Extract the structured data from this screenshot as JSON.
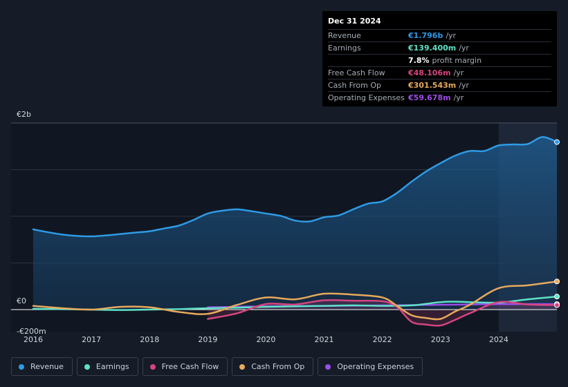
{
  "tooltip": {
    "date": "Dec 31 2024",
    "rows": [
      {
        "label": "Revenue",
        "value": "€1.796b",
        "unit": "/yr",
        "color": "#2e9be6"
      },
      {
        "label": "Earnings",
        "value": "€139.400m",
        "unit": "/yr",
        "color": "#5ee3c8"
      },
      {
        "label": "",
        "value": "7.8%",
        "unit": "profit margin",
        "color": "#ffffff"
      },
      {
        "label": "Free Cash Flow",
        "value": "€48.106m",
        "unit": "/yr",
        "color": "#d6457f"
      },
      {
        "label": "Cash From Op",
        "value": "€301.543m",
        "unit": "/yr",
        "color": "#e8a95c"
      },
      {
        "label": "Operating Expenses",
        "value": "€59.678m",
        "unit": "/yr",
        "color": "#9b4de8"
      }
    ]
  },
  "legend": [
    {
      "label": "Revenue",
      "color": "#2e9be6"
    },
    {
      "label": "Earnings",
      "color": "#5ee3c8"
    },
    {
      "label": "Free Cash Flow",
      "color": "#d6457f"
    },
    {
      "label": "Cash From Op",
      "color": "#e8a95c"
    },
    {
      "label": "Operating Expenses",
      "color": "#9b4de8"
    }
  ],
  "chart_data": {
    "type": "area",
    "title": "",
    "xlabel": "",
    "ylabel": "",
    "y_tick_labels": [
      "€2b",
      "€0",
      "-€200m"
    ],
    "y_ticks": [
      2000,
      0,
      -200
    ],
    "ylim": [
      -200,
      2000
    ],
    "xlim": [
      2016.0,
      2025.0
    ],
    "x_ticks": [
      2016,
      2017,
      2018,
      2019,
      2020,
      2021,
      2022,
      2023,
      2024
    ],
    "x_tick_labels": [
      "2016",
      "2017",
      "2018",
      "2019",
      "2020",
      "2021",
      "2022",
      "2023",
      "2024"
    ],
    "highlight_start": 2024.0,
    "series": [
      {
        "name": "Revenue",
        "color": "#2e9be6",
        "fill": true,
        "x": [
          2016.0,
          2016.25,
          2016.5,
          2016.75,
          2017.0,
          2017.25,
          2017.5,
          2017.75,
          2018.0,
          2018.25,
          2018.5,
          2018.75,
          2019.0,
          2019.25,
          2019.5,
          2019.75,
          2020.0,
          2020.25,
          2020.5,
          2020.75,
          2021.0,
          2021.25,
          2021.5,
          2021.75,
          2022.0,
          2022.25,
          2022.5,
          2022.75,
          2023.0,
          2023.25,
          2023.5,
          2023.75,
          2024.0,
          2024.25,
          2024.5,
          2024.75,
          2025.0
        ],
        "values": [
          860,
          830,
          805,
          790,
          785,
          795,
          810,
          825,
          840,
          870,
          900,
          960,
          1030,
          1060,
          1075,
          1055,
          1030,
          1005,
          955,
          945,
          990,
          1010,
          1075,
          1135,
          1160,
          1250,
          1370,
          1480,
          1570,
          1650,
          1700,
          1700,
          1760,
          1770,
          1775,
          1850,
          1796
        ]
      },
      {
        "name": "Earnings",
        "color": "#5ee3c8",
        "fill": false,
        "x": [
          2016.0,
          2016.5,
          2017.0,
          2017.5,
          2018.0,
          2018.5,
          2019.0,
          2019.5,
          2020.0,
          2020.5,
          2021.0,
          2021.5,
          2022.0,
          2022.5,
          2023.0,
          2023.25,
          2023.5,
          2024.0,
          2024.5,
          2025.0
        ],
        "values": [
          8,
          5,
          0,
          -5,
          0,
          5,
          15,
          20,
          30,
          35,
          40,
          45,
          40,
          45,
          80,
          85,
          80,
          75,
          110,
          139.4
        ]
      },
      {
        "name": "Free Cash Flow",
        "color": "#d6457f",
        "fill": false,
        "x": [
          2019.0,
          2019.5,
          2020.0,
          2020.5,
          2021.0,
          2021.5,
          2022.0,
          2022.25,
          2022.5,
          2022.75,
          2023.0,
          2023.25,
          2023.5,
          2024.0,
          2024.5,
          2025.0
        ],
        "values": [
          -100,
          -40,
          60,
          55,
          100,
          95,
          90,
          30,
          -130,
          -160,
          -170,
          -110,
          -40,
          80,
          55,
          48.106
        ]
      },
      {
        "name": "Cash From Op",
        "color": "#e8a95c",
        "fill": false,
        "x": [
          2016.0,
          2016.5,
          2017.0,
          2017.5,
          2018.0,
          2018.5,
          2019.0,
          2019.5,
          2020.0,
          2020.5,
          2021.0,
          2021.5,
          2022.0,
          2022.25,
          2022.5,
          2022.75,
          2023.0,
          2023.25,
          2023.5,
          2024.0,
          2024.5,
          2025.0
        ],
        "values": [
          40,
          15,
          0,
          30,
          25,
          -25,
          -45,
          50,
          130,
          110,
          170,
          160,
          130,
          40,
          -60,
          -90,
          -100,
          -20,
          50,
          230,
          260,
          301.543
        ]
      },
      {
        "name": "Operating Expenses",
        "color": "#9b4de8",
        "fill": false,
        "x": [
          2019.0,
          2019.5,
          2020.0,
          2020.5,
          2021.0,
          2021.5,
          2022.0,
          2022.5,
          2023.0,
          2023.5,
          2024.0,
          2024.5,
          2025.0
        ],
        "values": [
          25,
          30,
          35,
          38,
          40,
          42,
          45,
          48,
          52,
          55,
          58,
          59,
          59.678
        ]
      }
    ]
  }
}
